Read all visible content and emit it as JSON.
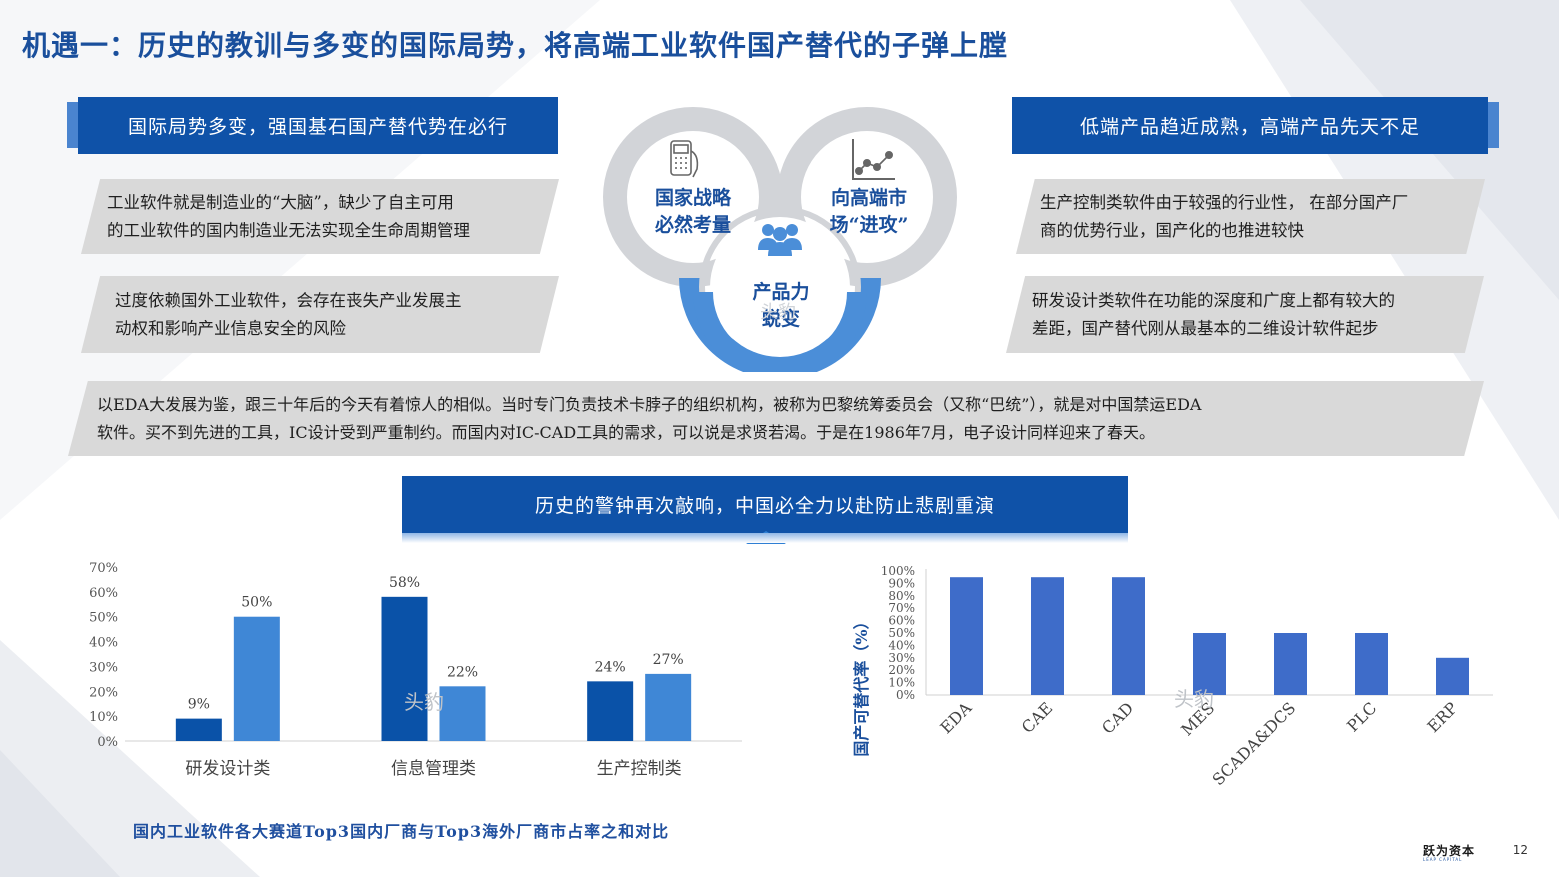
{
  "title": "机遇一：历史的教训与多变的国际局势，将高端工业软件国产替代的子弹上膛",
  "left_banner": "国际局势多变，强国基石国产替代势在必行",
  "right_banner": "低端产品趋近成熟，高端产品先天不足",
  "left_points": [
    [
      "工业软件就是制造业的“大脑”，缺少了自主可用",
      "的工业软件的国内制造业无法实现全生命周期管理"
    ],
    [
      "过度依赖国外工业软件，会存在丧失产业发展主",
      "动权和影响产业信息安全的风险"
    ]
  ],
  "right_points": [
    [
      "生产控制类软件由于较强的行业性， 在部分国产厂",
      "商的优势行业，国产化的也推进较快"
    ],
    [
      "研发设计类软件在功能的深度和广度上都有较大的",
      "差距，国产替代刚从最基本的二维设计软件起步"
    ]
  ],
  "circles": {
    "c1": [
      "国家战略",
      "必然考量"
    ],
    "c2": [
      "向高端市",
      "场“进攻”"
    ],
    "c3": [
      "产品力",
      "蜕变"
    ]
  },
  "wide_note": [
    "以EDA大发展为鉴，跟三十年后的今天有着惊人的相似。当时专门负责技术卡脖子的组织机构，被称为巴黎统筹委员会（又称“巴统”），就是对中国禁运EDA",
    "软件。买不到先进的工具，IC设计受到严重制约。而国内对IC-CAD工具的需求，可以说是求贤若渴。于是在1986年7月，电子设计同样迎来了春天。"
  ],
  "center_banner": "历史的警钟再次敲响，中国必全力以赴防止悲剧重演",
  "footnote": "国内工业软件各大赛道Top3国内厂商与Top3海外厂商市占率之和对比",
  "watermark": "头豹",
  "page_number": "12",
  "logo": {
    "name": "跃为资本",
    "sub": "LEAP CAPITAL"
  },
  "colors": {
    "dark_blue": "#0a52a8",
    "light_blue": "#3f87d6",
    "bar_blue": "#3e6cc9",
    "gray_box": "#d9d9d9",
    "title_blue": "#1a4f9c"
  },
  "chart_data": [
    {
      "type": "bar",
      "categories": [
        "研发设计类",
        "信息管理类",
        "生产控制类"
      ],
      "series": [
        {
          "values": [
            9,
            58,
            24
          ],
          "labels": [
            "9%",
            "58%",
            "24%"
          ]
        },
        {
          "values": [
            50,
            22,
            27
          ],
          "labels": [
            "50%",
            "22%",
            "27%"
          ]
        }
      ],
      "ylim": [
        0,
        70
      ],
      "yticks": [
        "0%",
        "10%",
        "20%",
        "30%",
        "40%",
        "50%",
        "60%",
        "70%"
      ],
      "grid": false
    },
    {
      "type": "bar",
      "categories": [
        "EDA",
        "CAE",
        "CAD",
        "MES",
        "SCADA&DCS",
        "PLC",
        "ERP"
      ],
      "values": [
        95,
        95,
        95,
        50,
        50,
        50,
        30
      ],
      "ylim": [
        0,
        100
      ],
      "yticks": [
        "0%",
        "10%",
        "20%",
        "30%",
        "40%",
        "50%",
        "60%",
        "70%",
        "80%",
        "90%",
        "100%"
      ],
      "ylabel": "国产可替代率（%）",
      "grid": false
    }
  ]
}
